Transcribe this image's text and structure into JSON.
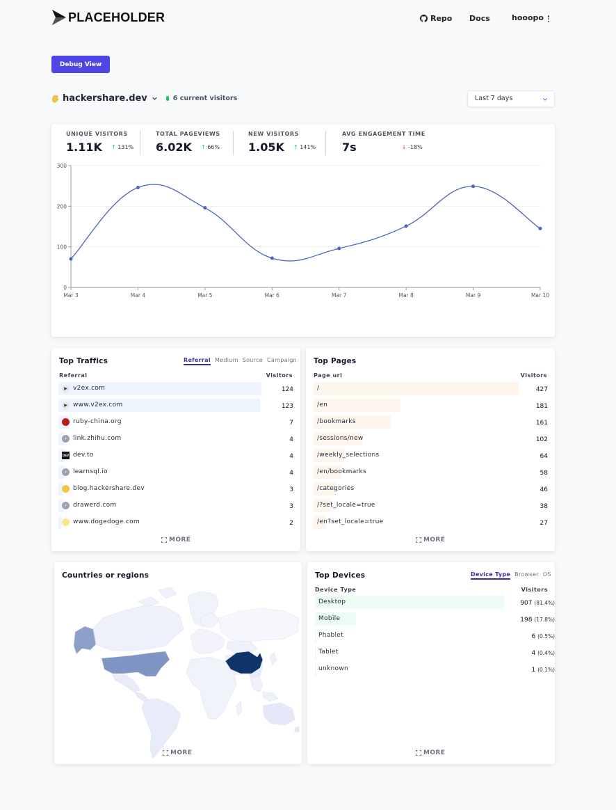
{
  "brand": {
    "name": "PLACEHOLDER"
  },
  "nav": {
    "repo": "Repo",
    "docs": "Docs",
    "user": "hooopo"
  },
  "debug_button": "Debug View",
  "site": {
    "name": "hackershare.dev",
    "live_text": "6 current visitors"
  },
  "date_range": {
    "selected": "Last 7 days"
  },
  "stats": [
    {
      "label": "UNIQUE VISITORS",
      "value": "1.11K",
      "change": "131%",
      "direction": "up"
    },
    {
      "label": "TOTAL PAGEVIEWS",
      "value": "6.02K",
      "change": "66%",
      "direction": "up"
    },
    {
      "label": "NEW VISITORS",
      "value": "1.05K",
      "change": "141%",
      "direction": "up"
    },
    {
      "label": "AVG ENGAGEMENT TIME",
      "value": "7s",
      "change": "-18%",
      "direction": "down"
    }
  ],
  "chart_data": {
    "type": "line",
    "x": [
      "Mar 3",
      "Mar 4",
      "Mar 5",
      "Mar 6",
      "Mar 7",
      "Mar 8",
      "Mar 9",
      "Mar 10"
    ],
    "series": [
      {
        "values": [
          70,
          246,
          196,
          72,
          96,
          151,
          249,
          145
        ]
      }
    ],
    "ylim": [
      0,
      300
    ],
    "yticks": [
      0,
      100,
      200,
      300
    ],
    "grid": true,
    "color": "#4964c2"
  },
  "top_traffics": {
    "title": "Top Traffics",
    "tabs": [
      "Referral",
      "Medium",
      "Source",
      "Campaign"
    ],
    "col_label": "Referral",
    "col_value": "Visitors",
    "more": "MORE",
    "rows": [
      {
        "label": "v2ex.com",
        "value": 124,
        "icon": "v2ex-favicon"
      },
      {
        "label": "www.v2ex.com",
        "value": 123,
        "icon": "v2ex-favicon"
      },
      {
        "label": "ruby-china.org",
        "value": 7,
        "icon": "ruby-china-favicon"
      },
      {
        "label": "link.zhihu.com",
        "value": 4,
        "icon": "globe-favicon"
      },
      {
        "label": "dev.to",
        "value": 4,
        "icon": "devto-favicon"
      },
      {
        "label": "learnsql.io",
        "value": 4,
        "icon": "globe-favicon"
      },
      {
        "label": "blog.hackershare.dev",
        "value": 3,
        "icon": "hackershare-favicon"
      },
      {
        "label": "drawerd.com",
        "value": 3,
        "icon": "globe-favicon"
      },
      {
        "label": "www.dogedoge.com",
        "value": 2,
        "icon": "dogedoge-favicon"
      }
    ]
  },
  "top_pages": {
    "title": "Top Pages",
    "col_label": "Page url",
    "col_value": "Visitors",
    "more": "MORE",
    "rows": [
      {
        "label": "/",
        "value": 427
      },
      {
        "label": "/en",
        "value": 181
      },
      {
        "label": "/bookmarks",
        "value": 161
      },
      {
        "label": "/sessions/new",
        "value": 102
      },
      {
        "label": "/weekly_selections",
        "value": 64
      },
      {
        "label": "/en/bookmarks",
        "value": 58
      },
      {
        "label": "/categories",
        "value": 46
      },
      {
        "label": "/?set_locale=true",
        "value": 38
      },
      {
        "label": "/en?set_locale=true",
        "value": 27
      }
    ]
  },
  "countries": {
    "title": "Countries or regions",
    "more": "MORE"
  },
  "top_devices": {
    "title": "Top Devices",
    "tabs": [
      "Device Type",
      "Browser",
      "OS"
    ],
    "col_label": "Device Type",
    "col_value": "Visitors",
    "more": "MORE",
    "rows": [
      {
        "label": "Desktop",
        "value": "907",
        "pct": "(81.4%)",
        "share": 0.814
      },
      {
        "label": "Mobile",
        "value": "198",
        "pct": "(17.8%)",
        "share": 0.178
      },
      {
        "label": "Phablet",
        "value": "6",
        "pct": "(0.5%)",
        "share": 0.005
      },
      {
        "label": "Tablet",
        "value": "4",
        "pct": "(0.4%)",
        "share": 0.004
      },
      {
        "label": "unknown",
        "value": "1",
        "pct": "(0.1%)",
        "share": 0.001
      }
    ]
  }
}
